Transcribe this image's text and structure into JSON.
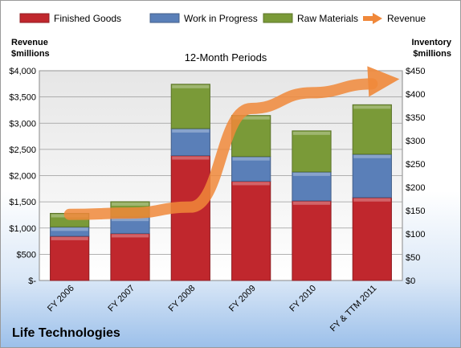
{
  "company": "Life Technologies",
  "chart_data": {
    "type": "bar",
    "stacked": true,
    "subtitle": "12-Month Periods",
    "categories": [
      "FY 2006",
      "FY 2007",
      "FY 2008",
      "FY 2009",
      "FY 2010",
      "FY & TTM 2011"
    ],
    "left_axis": {
      "title": [
        "Revenue",
        "$millions"
      ],
      "range": [
        0,
        4000
      ],
      "ticks": [
        0,
        500,
        1000,
        1500,
        2000,
        2500,
        3000,
        3500,
        4000
      ],
      "tick_labels": [
        "$-",
        "$500",
        "$1,000",
        "$1,500",
        "$2,000",
        "$2,500",
        "$3,000",
        "$3,500",
        "$4,000"
      ]
    },
    "right_axis": {
      "title": [
        "Inventory",
        "$millions"
      ],
      "range": [
        0,
        450
      ],
      "ticks": [
        0,
        50,
        100,
        150,
        200,
        250,
        300,
        350,
        400,
        450
      ],
      "tick_labels": [
        "$0",
        "$50",
        "$100",
        "$150",
        "$200",
        "$250",
        "$300",
        "$350",
        "$400",
        "$450"
      ]
    },
    "series": [
      {
        "name": "Finished Goods",
        "axis": "right",
        "color": "#c0272d",
        "values": [
          95,
          101,
          268,
          213,
          171,
          178
        ]
      },
      {
        "name": "Work in Progress",
        "axis": "right",
        "color": "#5a7fb8",
        "values": [
          20,
          35,
          58,
          53,
          62,
          93
        ]
      },
      {
        "name": "Raw Materials",
        "axis": "right",
        "color": "#7a9a38",
        "values": [
          29,
          33,
          95,
          88,
          88,
          106
        ]
      },
      {
        "name": "Revenue",
        "type": "trend-arrow",
        "axis": "left",
        "color": "#f0883a",
        "values": [
          1260,
          1285,
          1400,
          3280,
          3580,
          3750
        ]
      }
    ],
    "legend_position": "top",
    "grid": true
  }
}
